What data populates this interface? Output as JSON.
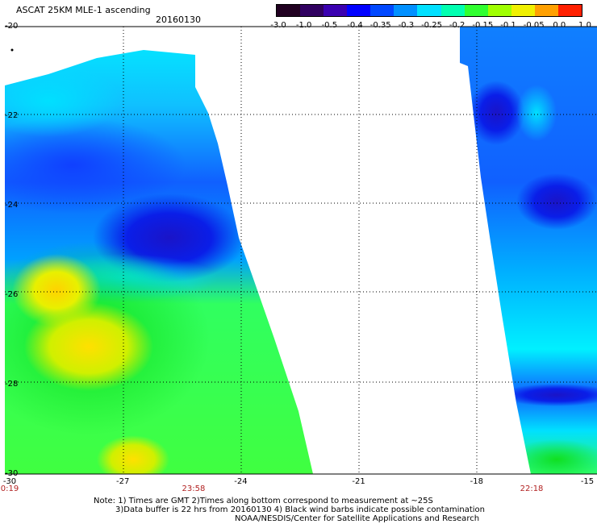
{
  "header": {
    "title": "ASCAT 25KM MLE-1 ascending",
    "date": "20160130"
  },
  "colorbar": {
    "labels": [
      "-3.0",
      "-1.0",
      "-0.5",
      "-0.4",
      "-0.35",
      "-0.3",
      "-0.25",
      "-0.2",
      "-0.15",
      "-0.1",
      "-0.05",
      "0.0",
      "1.0"
    ],
    "colors": [
      "#200020",
      "#300060",
      "#3a00b0",
      "#0000ff",
      "#0048ff",
      "#0090ff",
      "#00e0ff",
      "#00ffb0",
      "#30ff30",
      "#a0ff00",
      "#f0f000",
      "#ffa000",
      "#ff2000"
    ]
  },
  "axes": {
    "y_ticks": [
      {
        "label": "-20",
        "value": -20
      },
      {
        "label": "-22",
        "value": -22
      },
      {
        "label": "-24",
        "value": -24
      },
      {
        "label": "-26",
        "value": -26
      },
      {
        "label": "-28",
        "value": -28
      },
      {
        "label": "-30",
        "value": -30
      }
    ],
    "x_ticks": [
      {
        "label": "-30",
        "value": -30
      },
      {
        "label": "-27",
        "value": -27
      },
      {
        "label": "-24",
        "value": -24
      },
      {
        "label": "-21",
        "value": -21
      },
      {
        "label": "-18",
        "value": -18
      },
      {
        "label": "-15",
        "value": -15
      }
    ],
    "lon_range": [
      -30,
      -15
    ],
    "lat_range": [
      -30,
      -20
    ]
  },
  "times": [
    {
      "label": "0:19",
      "lon": -30
    },
    {
      "label": "23:58",
      "lon": -25.2
    },
    {
      "label": "22:18",
      "lon": -16.6
    }
  ],
  "notes": {
    "line1": "Note: 1) Times are GMT 2)Times along bottom correspond to measurement at ~25S",
    "line2": "3)Data buffer is 22 hrs from 20160130 4) Black wind barbs indicate possible contamination",
    "line3": "NOAA/NESDIS/Center for Satellite Applications and Research"
  }
}
